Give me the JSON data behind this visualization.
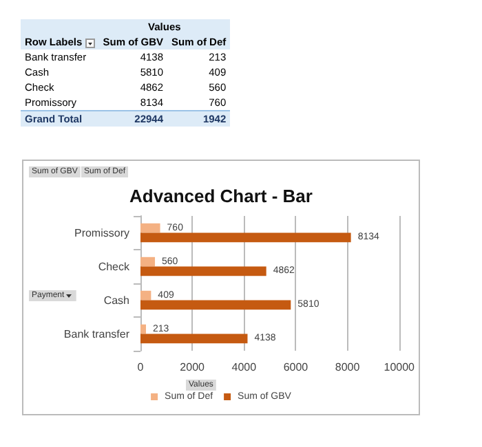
{
  "chart_data": [
    {
      "type": "other",
      "title": "Values",
      "xlabel": "Row Labels",
      "data_labels": true,
      "categories": [
        "Bank transfer",
        "Cash",
        "Check",
        "Promissory",
        "Grand Total"
      ],
      "series": [
        {
          "name": "Sum of GBV",
          "values": [
            4138,
            5810,
            4862,
            8134,
            22944
          ]
        },
        {
          "name": "Sum of Def",
          "values": [
            213,
            409,
            560,
            760,
            1942
          ]
        }
      ]
    },
    {
      "type": "bar",
      "orientation": "horizontal",
      "title": "Advanced Chart - Bar",
      "xlabel": "Values",
      "ylabel": "Payment",
      "annotations": [
        "Sum of GBV",
        "Sum of Def"
      ],
      "categories": [
        "Promissory",
        "Check",
        "Cash",
        "Bank transfer"
      ],
      "series": [
        {
          "name": "Sum of Def",
          "color": "#f4b183",
          "values": [
            760,
            560,
            409,
            213
          ]
        },
        {
          "name": "Sum of GBV",
          "color": "#c55a11",
          "values": [
            8134,
            4862,
            5810,
            4138
          ]
        }
      ],
      "xlim": [
        0,
        10000
      ],
      "xticks": [
        0,
        2000,
        4000,
        6000,
        8000,
        10000
      ],
      "grid": "x",
      "legend": "bottom",
      "data_labels": true
    }
  ]
}
